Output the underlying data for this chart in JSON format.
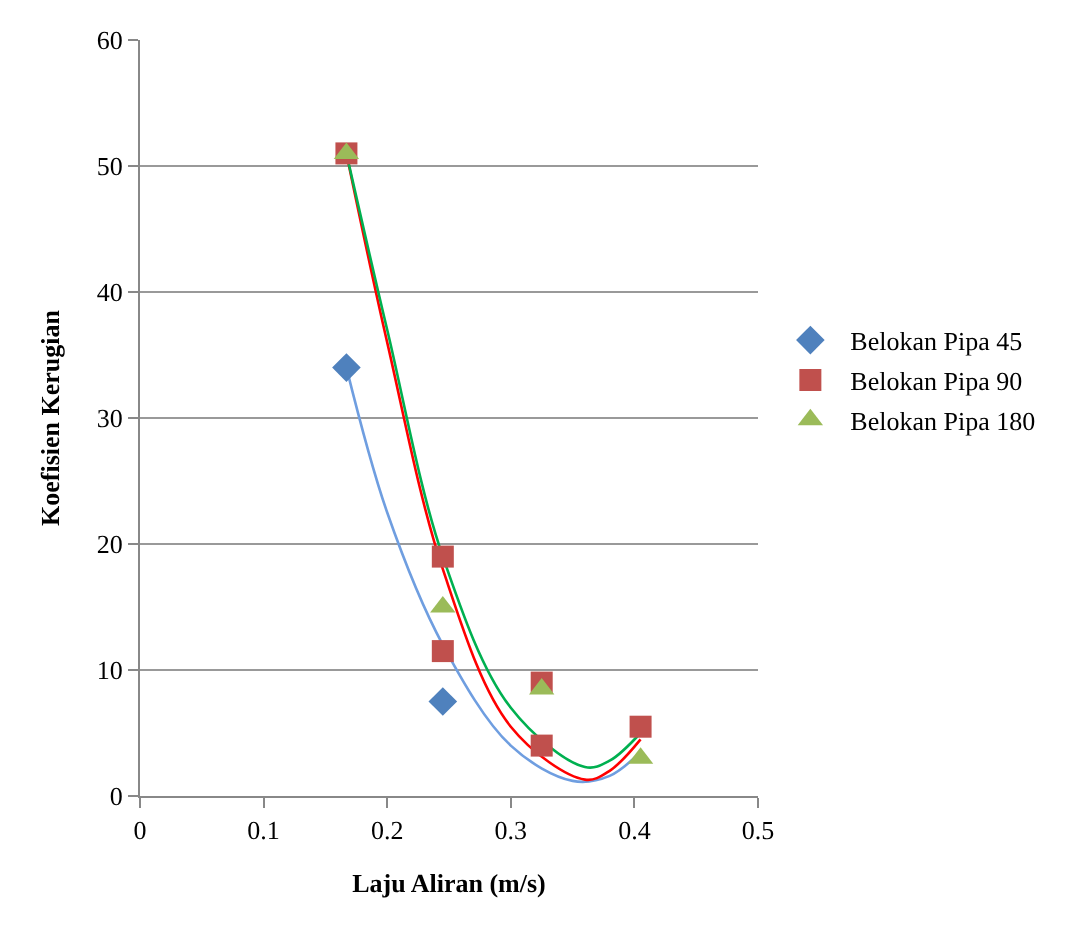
{
  "chart_data": {
    "type": "scatter",
    "xlabel": "Laju Aliran (m/s)",
    "ylabel": "Koefisien Kerugian",
    "xlim": [
      0,
      0.5
    ],
    "xticks": [
      0,
      0.1,
      0.2,
      0.3,
      0.4,
      0.5
    ],
    "ylim": [
      0,
      60
    ],
    "yticks": [
      0,
      10,
      20,
      30,
      40,
      50,
      60
    ],
    "grid": "y",
    "legend": "right",
    "series": [
      {
        "type": "line",
        "color": "#6f9ee0",
        "marker": "none",
        "x": [
          0.167,
          0.2,
          0.245,
          0.3,
          0.35,
          0.38,
          0.405
        ],
        "values": [
          34,
          22.5,
          12,
          4,
          1.2,
          1.6,
          3.5
        ]
      },
      {
        "type": "line",
        "color": "#ff0000",
        "marker": "none",
        "x": [
          0.167,
          0.2,
          0.245,
          0.3,
          0.36,
          0.38,
          0.405
        ],
        "values": [
          51,
          36,
          18,
          5.5,
          1.3,
          2,
          4.5
        ]
      },
      {
        "type": "line",
        "color": "#00b050",
        "marker": "none",
        "x": [
          0.167,
          0.2,
          0.245,
          0.3,
          0.36,
          0.38,
          0.405
        ],
        "values": [
          51,
          37,
          19,
          7,
          2.3,
          2.8,
          5
        ]
      },
      {
        "name": "Belokan Pipa 45",
        "color": "#4f81bd",
        "marker": "diamond",
        "x": [
          0.167,
          0.245
        ],
        "values": [
          34,
          7.5
        ]
      },
      {
        "name": "Belokan Pipa 90",
        "color": "#c0504d",
        "marker": "square",
        "x": [
          0.167,
          0.245,
          0.245,
          0.325,
          0.325,
          0.405
        ],
        "values": [
          51,
          19,
          11.5,
          9,
          4,
          5.5
        ]
      },
      {
        "name": "Belokan Pipa 180",
        "color": "#9bbb59",
        "marker": "triangle",
        "x": [
          0.167,
          0.245,
          0.325,
          0.405
        ],
        "values": [
          51,
          15,
          8.5,
          3
        ]
      }
    ]
  }
}
